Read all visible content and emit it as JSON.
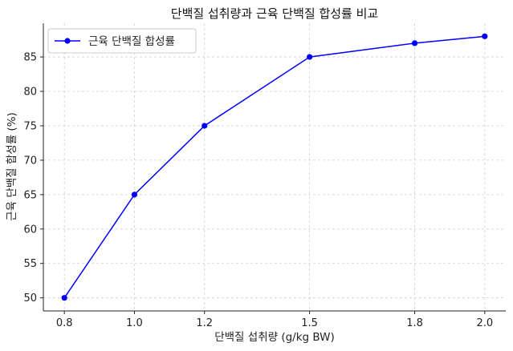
{
  "chart_data": {
    "type": "line",
    "title": "단백질 섭취량과 근육 단백질 합성률 비교",
    "xlabel": "단백질 섭취량 (g/kg BW)",
    "ylabel": "근육 단백질 합성률 (%)",
    "x": [
      0.8,
      1.0,
      1.2,
      1.5,
      1.8,
      2.0
    ],
    "x_tick_labels": [
      "0.8",
      "1.0",
      "1.2",
      "1.5",
      "1.8",
      "2.0"
    ],
    "y_ticks": [
      50,
      55,
      60,
      65,
      70,
      75,
      80,
      85
    ],
    "xlim": [
      0.74,
      2.06
    ],
    "ylim": [
      48.1,
      89.9
    ],
    "series": [
      {
        "name": "근육 단백질 합성률",
        "values": [
          50,
          65,
          75,
          85,
          87,
          88
        ],
        "color": "#0000ff",
        "marker": "circle"
      }
    ],
    "legend": {
      "position": "top-left"
    },
    "grid": true
  }
}
